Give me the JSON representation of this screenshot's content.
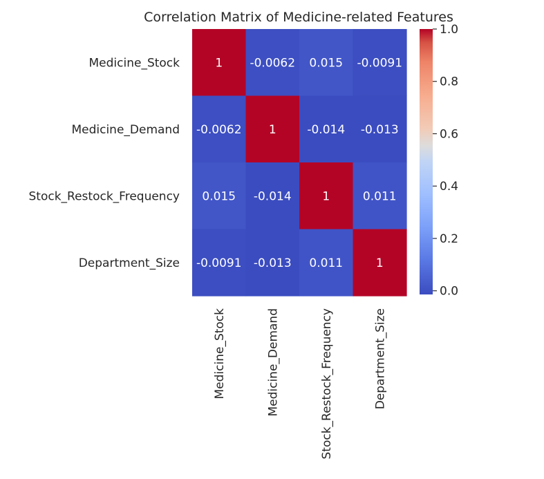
{
  "chart_data": {
    "type": "heatmap",
    "title": "Correlation Matrix of Medicine-related Features",
    "xlabel": "",
    "ylabel": "",
    "row_labels": [
      "Medicine_Stock",
      "Medicine_Demand",
      "Stock_Restock_Frequency",
      "Department_Size"
    ],
    "col_labels": [
      "Medicine_Stock",
      "Medicine_Demand",
      "Stock_Restock_Frequency",
      "Department_Size"
    ],
    "values": [
      [
        1,
        -0.0062,
        0.015,
        -0.0091
      ],
      [
        -0.0062,
        1,
        -0.014,
        -0.013
      ],
      [
        0.015,
        -0.014,
        1,
        0.011
      ],
      [
        -0.0091,
        -0.013,
        0.011,
        1
      ]
    ],
    "annotations": [
      [
        "1",
        "-0.0062",
        "0.015",
        "-0.0091"
      ],
      [
        "-0.0062",
        "1",
        "-0.014",
        "-0.013"
      ],
      [
        "0.015",
        "-0.014",
        "1",
        "0.011"
      ],
      [
        "-0.0091",
        "-0.013",
        "0.011",
        "1"
      ]
    ],
    "colormap": "coolwarm",
    "colorbar": {
      "vmin": -0.014,
      "vmax": 1.0,
      "ticks": [
        0.0,
        0.2,
        0.4,
        0.6,
        0.8,
        1.0
      ],
      "tick_labels": [
        "0.0",
        "0.2",
        "0.4",
        "0.6",
        "0.8",
        "1.0"
      ]
    },
    "grid": false,
    "legend": "colorbar-right"
  }
}
